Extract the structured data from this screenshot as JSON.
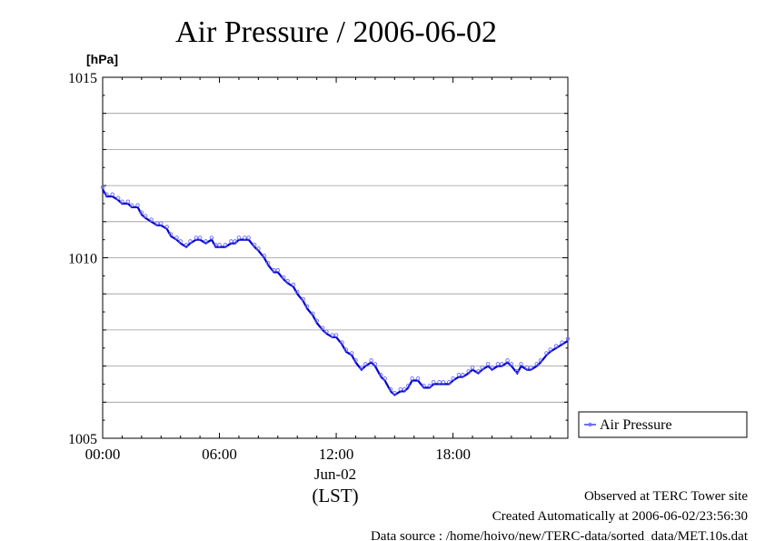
{
  "chart_data": {
    "type": "line",
    "title": "Air Pressure / 2006-06-02",
    "unit_label": "[hPa]",
    "ylim": [
      1005,
      1015
    ],
    "yticks": [
      1005,
      1010,
      1015
    ],
    "y_gridlines": [
      1006,
      1007,
      1008,
      1009,
      1010,
      1011,
      1012,
      1013,
      1014
    ],
    "xlim": [
      0,
      23.9
    ],
    "xticks": [
      {
        "x": 0,
        "label": "00:00"
      },
      {
        "x": 6,
        "label": "06:00"
      },
      {
        "x": 12,
        "label": "12:00"
      },
      {
        "x": 18,
        "label": "18:00"
      }
    ],
    "date_label": "Jun-02",
    "timezone_label": "(LST)",
    "grid": true,
    "legend_position": "bottom-right outside",
    "series": [
      {
        "name": "Air Pressure",
        "color": "#0000cc",
        "marker_color": "#6b6bff",
        "x": [
          0,
          0.2,
          0.5,
          0.8,
          1.0,
          1.3,
          1.5,
          1.8,
          2.0,
          2.2,
          2.5,
          2.8,
          3.0,
          3.3,
          3.5,
          3.8,
          4.0,
          4.3,
          4.5,
          4.8,
          5.0,
          5.3,
          5.6,
          5.8,
          6.0,
          6.3,
          6.6,
          6.8,
          7.0,
          7.3,
          7.5,
          7.8,
          8.0,
          8.3,
          8.5,
          8.8,
          9.0,
          9.3,
          9.5,
          9.8,
          10.0,
          10.3,
          10.5,
          10.8,
          11.0,
          11.3,
          11.5,
          11.8,
          12.0,
          12.3,
          12.5,
          12.8,
          13.0,
          13.3,
          13.5,
          13.8,
          14.0,
          14.3,
          14.5,
          14.8,
          15.0,
          15.3,
          15.5,
          15.7,
          15.9,
          16.2,
          16.5,
          16.8,
          17.0,
          17.3,
          17.5,
          17.8,
          18.0,
          18.3,
          18.5,
          18.8,
          19.0,
          19.3,
          19.5,
          19.8,
          20.0,
          20.3,
          20.5,
          20.8,
          21.0,
          21.3,
          21.5,
          21.8,
          22.0,
          22.3,
          22.5,
          22.8,
          23.0,
          23.3,
          23.6,
          23.9
        ],
        "y": [
          1011.9,
          1011.7,
          1011.7,
          1011.6,
          1011.5,
          1011.5,
          1011.4,
          1011.4,
          1011.2,
          1011.1,
          1011.0,
          1010.9,
          1010.9,
          1010.8,
          1010.6,
          1010.5,
          1010.4,
          1010.3,
          1010.4,
          1010.5,
          1010.5,
          1010.4,
          1010.5,
          1010.3,
          1010.3,
          1010.3,
          1010.4,
          1010.4,
          1010.5,
          1010.5,
          1010.5,
          1010.3,
          1010.2,
          1010.0,
          1009.8,
          1009.6,
          1009.6,
          1009.4,
          1009.3,
          1009.2,
          1009.0,
          1008.8,
          1008.6,
          1008.4,
          1008.2,
          1008.0,
          1007.9,
          1007.8,
          1007.8,
          1007.6,
          1007.4,
          1007.3,
          1007.1,
          1006.9,
          1007.0,
          1007.1,
          1007.0,
          1006.7,
          1006.6,
          1006.3,
          1006.2,
          1006.3,
          1006.3,
          1006.4,
          1006.6,
          1006.6,
          1006.4,
          1006.4,
          1006.5,
          1006.5,
          1006.5,
          1006.5,
          1006.6,
          1006.7,
          1006.7,
          1006.8,
          1006.9,
          1006.8,
          1006.9,
          1007.0,
          1006.9,
          1007.0,
          1007.0,
          1007.1,
          1007.0,
          1006.8,
          1007.0,
          1006.9,
          1006.9,
          1007.0,
          1007.1,
          1007.3,
          1007.4,
          1007.5,
          1007.6,
          1007.7
        ]
      }
    ]
  },
  "footer": {
    "line1": "Observed at TERC Tower site",
    "line2": "Created Automatically at 2006-06-02/23:56:30",
    "line3": "Data source : /home/hoivo/new/TERC-data/sorted_data/MET.10s.dat"
  }
}
